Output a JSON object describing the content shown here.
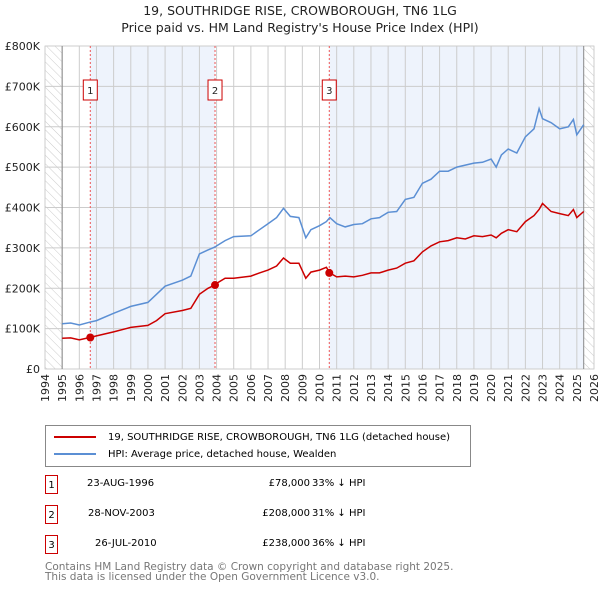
{
  "title": "19, SOUTHRIDGE RISE, CROWBOROUGH, TN6 1LG",
  "subtitle": "Price paid vs. HM Land Registry's House Price Index (HPI)",
  "chart_data": {
    "type": "line",
    "title": "19, SOUTHRIDGE RISE, CROWBOROUGH, TN6 1LG — Price paid vs. HM Land Registry's House Price Index (HPI)",
    "xlim": [
      1994,
      2026
    ],
    "ylim": [
      0,
      800000
    ],
    "x_ticks": [
      "1994",
      "1995",
      "1996",
      "1997",
      "1998",
      "1999",
      "2000",
      "2001",
      "2002",
      "2003",
      "2004",
      "2005",
      "2006",
      "2007",
      "2008",
      "2009",
      "2010",
      "2011",
      "2012",
      "2013",
      "2014",
      "2015",
      "2016",
      "2017",
      "2018",
      "2019",
      "2020",
      "2021",
      "2022",
      "2023",
      "2024",
      "2025",
      "2026"
    ],
    "y_ticks": [
      {
        "v": 0,
        "label": "£0"
      },
      {
        "v": 100000,
        "label": "£100K"
      },
      {
        "v": 200000,
        "label": "£200K"
      },
      {
        "v": 300000,
        "label": "£300K"
      },
      {
        "v": 400000,
        "label": "£400K"
      },
      {
        "v": 500000,
        "label": "£500K"
      },
      {
        "v": 600000,
        "label": "£600K"
      },
      {
        "v": 700000,
        "label": "£700K"
      },
      {
        "v": 800000,
        "label": "£800K"
      }
    ],
    "grid": true,
    "series": [
      {
        "name": "19, SOUTHRIDGE RISE, CROWBOROUGH, TN6 1LG (detached house)",
        "color": "#cc0000",
        "x": [
          1995,
          1995.5,
          1996,
          1996.6,
          1997,
          1998,
          1999,
          2000,
          2000.5,
          2001,
          2002,
          2002.5,
          2003,
          2003.5,
          2003.9,
          2004,
          2004.5,
          2005,
          2006,
          2006.5,
          2007,
          2007.5,
          2007.9,
          2008.3,
          2008.8,
          2009.2,
          2009.5,
          2010,
          2010.4,
          2010.6,
          2011,
          2011.5,
          2012,
          2012.5,
          2013,
          2013.5,
          2014,
          2014.5,
          2015,
          2015.5,
          2016,
          2016.5,
          2017,
          2017.5,
          2018,
          2018.5,
          2019,
          2019.5,
          2020,
          2020.3,
          2020.6,
          2021,
          2021.5,
          2022,
          2022.5,
          2022.8,
          2023,
          2023.5,
          2024,
          2024.5,
          2024.8,
          2025,
          2025.4
        ],
        "y": [
          76000,
          77000,
          72000,
          78000,
          82000,
          92000,
          103000,
          108000,
          120000,
          137000,
          145000,
          150000,
          185000,
          200000,
          208000,
          212000,
          225000,
          225000,
          230000,
          238000,
          245000,
          255000,
          275000,
          262000,
          262000,
          225000,
          240000,
          245000,
          252000,
          238000,
          228000,
          230000,
          228000,
          232000,
          238000,
          238000,
          245000,
          250000,
          262000,
          268000,
          290000,
          305000,
          315000,
          318000,
          325000,
          322000,
          330000,
          328000,
          332000,
          325000,
          336000,
          345000,
          340000,
          365000,
          380000,
          395000,
          410000,
          390000,
          385000,
          380000,
          395000,
          375000,
          390000
        ]
      },
      {
        "name": "HPI: Average price, detached house, Wealden",
        "color": "#5b8fd4",
        "x": [
          1995,
          1995.5,
          1996,
          1996.6,
          1997,
          1998,
          1999,
          2000,
          2000.5,
          2001,
          2002,
          2002.5,
          2003,
          2003.5,
          2003.9,
          2004,
          2004.5,
          2005,
          2006,
          2006.5,
          2007,
          2007.5,
          2007.9,
          2008.3,
          2008.8,
          2009.2,
          2009.5,
          2010,
          2010.4,
          2010.6,
          2011,
          2011.5,
          2012,
          2012.5,
          2013,
          2013.5,
          2014,
          2014.5,
          2015,
          2015.5,
          2016,
          2016.5,
          2017,
          2017.5,
          2018,
          2018.5,
          2019,
          2019.5,
          2020,
          2020.3,
          2020.6,
          2021,
          2021.5,
          2022,
          2022.5,
          2022.8,
          2023,
          2023.5,
          2024,
          2024.5,
          2024.8,
          2025,
          2025.4
        ],
        "y": [
          112000,
          114000,
          109000,
          116000,
          120000,
          138000,
          155000,
          165000,
          185000,
          205000,
          220000,
          230000,
          285000,
          295000,
          302000,
          305000,
          318000,
          328000,
          330000,
          345000,
          360000,
          375000,
          398000,
          378000,
          375000,
          325000,
          345000,
          355000,
          365000,
          375000,
          360000,
          352000,
          358000,
          360000,
          372000,
          375000,
          388000,
          390000,
          420000,
          425000,
          460000,
          470000,
          490000,
          490000,
          500000,
          505000,
          510000,
          512000,
          520000,
          500000,
          530000,
          545000,
          535000,
          575000,
          595000,
          645000,
          620000,
          610000,
          595000,
          600000,
          618000,
          580000,
          605000
        ]
      }
    ],
    "sales": [
      {
        "n": "1",
        "x": 1996.64,
        "y": 78000,
        "date": "23-AUG-1996",
        "price": "£78,000",
        "hpi": "33% ↓ HPI"
      },
      {
        "n": "2",
        "x": 2003.91,
        "y": 208000,
        "date": "28-NOV-2003",
        "price": "£208,000",
        "hpi": "31% ↓ HPI"
      },
      {
        "n": "3",
        "x": 2010.57,
        "y": 238000,
        "date": "26-JUL-2010",
        "price": "£238,000",
        "hpi": "36% ↓ HPI"
      }
    ],
    "shaded_ranges": [
      [
        1996.64,
        2003.91
      ],
      [
        2010.57,
        2025.4
      ]
    ],
    "hatched_ranges": [
      [
        1994,
        1995
      ],
      [
        2025.4,
        2026
      ]
    ]
  },
  "legend": {
    "property": "19, SOUTHRIDGE RISE, CROWBOROUGH, TN6 1LG (detached house)",
    "hpi": "HPI: Average price, detached house, Wealden"
  },
  "footer": [
    "Contains HM Land Registry data © Crown copyright and database right 2025.",
    "This data is licensed under the Open Government Licence v3.0."
  ]
}
